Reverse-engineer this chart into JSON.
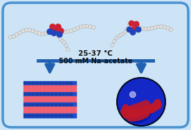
{
  "bg_color": "#cce4f5",
  "border_color": "#4a90d0",
  "text_top": "25-37 °C",
  "text_bottom": "500 mM Na-acetate",
  "text_fontsize": 7.5,
  "text_color": "#111111",
  "arrow_color": "#2060b0",
  "lamellar_pink": "#f06070",
  "lamellar_blue": "#2050c8",
  "vesicle_blue": "#1428c8",
  "vesicle_red": "#c01828",
  "vesicle_dark": "#050a30"
}
